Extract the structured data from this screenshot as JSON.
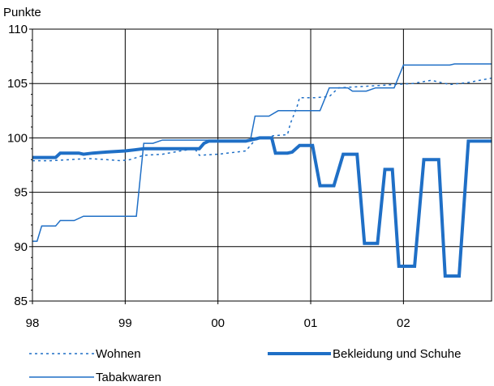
{
  "chart_data": {
    "type": "line",
    "ylabel": "Punkte",
    "ylim": [
      85,
      110
    ],
    "yticks": [
      85,
      90,
      95,
      100,
      105,
      110
    ],
    "xlim": [
      1998.0,
      2002.95
    ],
    "xticks": [
      {
        "label": "98",
        "x": 1998.0
      },
      {
        "label": "99",
        "x": 1999.0
      },
      {
        "label": "00",
        "x": 2000.0
      },
      {
        "label": "01",
        "x": 2001.0
      },
      {
        "label": "02",
        "x": 2002.0
      }
    ],
    "grid": true,
    "legend_position": "bottom",
    "series": [
      {
        "name": "Wohnen",
        "style": "dotted",
        "color": "#1f6fc6",
        "points": [
          [
            1998.0,
            97.9
          ],
          [
            1998.2,
            97.9
          ],
          [
            1998.4,
            98.0
          ],
          [
            1998.6,
            98.1
          ],
          [
            1998.8,
            98.0
          ],
          [
            1998.95,
            97.9
          ],
          [
            1999.05,
            98.0
          ],
          [
            1999.2,
            98.4
          ],
          [
            1999.4,
            98.5
          ],
          [
            1999.6,
            98.8
          ],
          [
            1999.75,
            99.0
          ],
          [
            1999.8,
            98.4
          ],
          [
            2000.0,
            98.5
          ],
          [
            2000.2,
            98.7
          ],
          [
            2000.3,
            98.8
          ],
          [
            2000.4,
            99.8
          ],
          [
            2000.6,
            100.2
          ],
          [
            2000.75,
            100.3
          ],
          [
            2000.78,
            101.3
          ],
          [
            2000.85,
            102.8
          ],
          [
            2000.88,
            103.7
          ],
          [
            2001.05,
            103.7
          ],
          [
            2001.2,
            103.8
          ],
          [
            2001.3,
            104.6
          ],
          [
            2001.5,
            104.7
          ],
          [
            2001.7,
            104.8
          ],
          [
            2001.9,
            104.9
          ],
          [
            2002.1,
            105.0
          ],
          [
            2002.3,
            105.3
          ],
          [
            2002.5,
            104.9
          ],
          [
            2002.7,
            105.1
          ],
          [
            2002.95,
            105.5
          ]
        ]
      },
      {
        "name": "Bekleidung und Schuhe",
        "style": "thick",
        "color": "#1f6fc6",
        "points": [
          [
            1998.0,
            98.2
          ],
          [
            1998.25,
            98.2
          ],
          [
            1998.3,
            98.6
          ],
          [
            1998.5,
            98.6
          ],
          [
            1998.55,
            98.5
          ],
          [
            1998.65,
            98.6
          ],
          [
            1998.8,
            98.7
          ],
          [
            1999.0,
            98.8
          ],
          [
            1999.1,
            98.9
          ],
          [
            1999.2,
            99.0
          ],
          [
            1999.8,
            99.0
          ],
          [
            1999.85,
            99.5
          ],
          [
            1999.9,
            99.7
          ],
          [
            2000.1,
            99.7
          ],
          [
            2000.3,
            99.7
          ],
          [
            2000.45,
            100.0
          ],
          [
            2000.58,
            100.0
          ],
          [
            2000.62,
            98.6
          ],
          [
            2000.75,
            98.6
          ],
          [
            2000.8,
            98.7
          ],
          [
            2000.88,
            99.3
          ],
          [
            2001.02,
            99.3
          ],
          [
            2001.1,
            95.6
          ],
          [
            2001.25,
            95.6
          ],
          [
            2001.35,
            98.5
          ],
          [
            2001.5,
            98.5
          ],
          [
            2001.58,
            90.3
          ],
          [
            2001.72,
            90.3
          ],
          [
            2001.8,
            97.1
          ],
          [
            2001.88,
            97.1
          ],
          [
            2001.95,
            88.2
          ],
          [
            2002.12,
            88.2
          ],
          [
            2002.22,
            98.0
          ],
          [
            2002.38,
            98.0
          ],
          [
            2002.45,
            87.3
          ],
          [
            2002.6,
            87.3
          ],
          [
            2002.7,
            99.7
          ],
          [
            2002.95,
            99.7
          ]
        ]
      },
      {
        "name": "Tabakwaren",
        "style": "solid",
        "color": "#1f6fc6",
        "points": [
          [
            1998.0,
            90.5
          ],
          [
            1998.05,
            90.5
          ],
          [
            1998.1,
            91.9
          ],
          [
            1998.25,
            91.9
          ],
          [
            1998.3,
            92.4
          ],
          [
            1998.45,
            92.4
          ],
          [
            1998.55,
            92.8
          ],
          [
            1998.85,
            92.8
          ],
          [
            1999.12,
            92.8
          ],
          [
            1999.2,
            99.5
          ],
          [
            1999.3,
            99.5
          ],
          [
            1999.4,
            99.8
          ],
          [
            1999.85,
            99.8
          ],
          [
            2000.35,
            99.8
          ],
          [
            2000.4,
            102.0
          ],
          [
            2000.55,
            102.0
          ],
          [
            2000.65,
            102.5
          ],
          [
            2000.85,
            102.5
          ],
          [
            2001.1,
            102.5
          ],
          [
            2001.2,
            104.6
          ],
          [
            2001.4,
            104.6
          ],
          [
            2001.45,
            104.3
          ],
          [
            2001.6,
            104.3
          ],
          [
            2001.7,
            104.6
          ],
          [
            2001.9,
            104.6
          ],
          [
            2002.0,
            106.7
          ],
          [
            2002.5,
            106.7
          ],
          [
            2002.55,
            106.8
          ],
          [
            2002.95,
            106.8
          ]
        ]
      }
    ]
  }
}
